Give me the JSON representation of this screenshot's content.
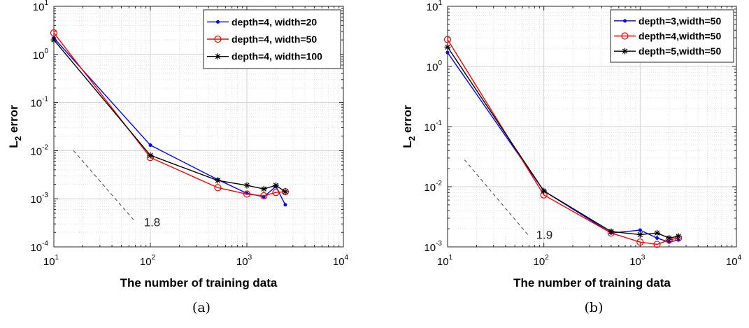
{
  "chart_data": [
    {
      "type": "line",
      "caption": "(a)",
      "xlabel": "The number of training data",
      "ylabel": "L_2 error",
      "xscale": "log",
      "yscale": "log",
      "xlim": [
        10,
        10000
      ],
      "ylim": [
        0.0001,
        10
      ],
      "grid": true,
      "legend_position": "top-right",
      "x_ticks": [
        {
          "base": "10",
          "exp": "1"
        },
        {
          "base": "10",
          "exp": "2"
        },
        {
          "base": "10",
          "exp": "3"
        },
        {
          "base": "10",
          "exp": "4"
        }
      ],
      "y_ticks": [
        {
          "base": "10",
          "exp": "-4"
        },
        {
          "base": "10",
          "exp": "-3"
        },
        {
          "base": "10",
          "exp": "-2"
        },
        {
          "base": "10",
          "exp": "-1"
        },
        {
          "base": "10",
          "exp": "0"
        },
        {
          "base": "10",
          "exp": "1"
        }
      ],
      "series": [
        {
          "name": "depth=4, width=20",
          "color": "#0000ff",
          "marker": "dot",
          "x": [
            10,
            100,
            500,
            1000,
            1500,
            2000,
            2500
          ],
          "y": [
            2.2,
            0.013,
            0.0025,
            0.0013,
            0.0011,
            0.0018,
            0.00075
          ]
        },
        {
          "name": "depth=4, width=50",
          "color": "#ff0000",
          "marker": "circle",
          "x": [
            10,
            100,
            500,
            1000,
            1500,
            2000,
            2500
          ],
          "y": [
            2.8,
            0.0072,
            0.0017,
            0.00125,
            0.00115,
            0.00135,
            0.0014
          ]
        },
        {
          "name": "depth=4, width=100",
          "color": "#000000",
          "marker": "star",
          "x": [
            10,
            100,
            500,
            1000,
            1500,
            2000,
            2500
          ],
          "y": [
            2.0,
            0.008,
            0.0024,
            0.0019,
            0.0016,
            0.0019,
            0.0014
          ]
        }
      ],
      "annotation": {
        "text": "1.8",
        "line_start": [
          16,
          0.01
        ],
        "line_end": [
          70,
          0.00033
        ]
      }
    },
    {
      "type": "line",
      "caption": "(b)",
      "xlabel": "The number of training data",
      "ylabel": "L_2 error",
      "xscale": "log",
      "yscale": "log",
      "xlim": [
        10,
        10000
      ],
      "ylim": [
        0.001,
        10
      ],
      "grid": true,
      "legend_position": "top-right",
      "x_ticks": [
        {
          "base": "10",
          "exp": "1"
        },
        {
          "base": "10",
          "exp": "2"
        },
        {
          "base": "10",
          "exp": "3"
        },
        {
          "base": "10",
          "exp": "4"
        }
      ],
      "y_ticks": [
        {
          "base": "10",
          "exp": "-3"
        },
        {
          "base": "10",
          "exp": "-2"
        },
        {
          "base": "10",
          "exp": "-1"
        },
        {
          "base": "10",
          "exp": "0"
        },
        {
          "base": "10",
          "exp": "1"
        }
      ],
      "series": [
        {
          "name": "depth=3,width=50",
          "color": "#0000ff",
          "marker": "dot",
          "x": [
            10,
            100,
            500,
            1000,
            1500,
            2000,
            2500
          ],
          "y": [
            1.7,
            0.0085,
            0.0017,
            0.0019,
            0.0014,
            0.0012,
            0.0013
          ]
        },
        {
          "name": "depth=4,width=50",
          "color": "#ff0000",
          "marker": "circle",
          "x": [
            10,
            100,
            500,
            1000,
            1500,
            2000,
            2500
          ],
          "y": [
            2.8,
            0.0073,
            0.0017,
            0.0012,
            0.0011,
            0.0013,
            0.0014
          ]
        },
        {
          "name": "depth=5,width=50",
          "color": "#000000",
          "marker": "star",
          "x": [
            10,
            100,
            500,
            1000,
            1500,
            2000,
            2500
          ],
          "y": [
            2.1,
            0.0085,
            0.0018,
            0.0016,
            0.0017,
            0.0014,
            0.0015
          ]
        }
      ],
      "annotation": {
        "text": "1.9",
        "line_start": [
          15,
          0.028
        ],
        "line_end": [
          68,
          0.0016
        ]
      }
    }
  ]
}
